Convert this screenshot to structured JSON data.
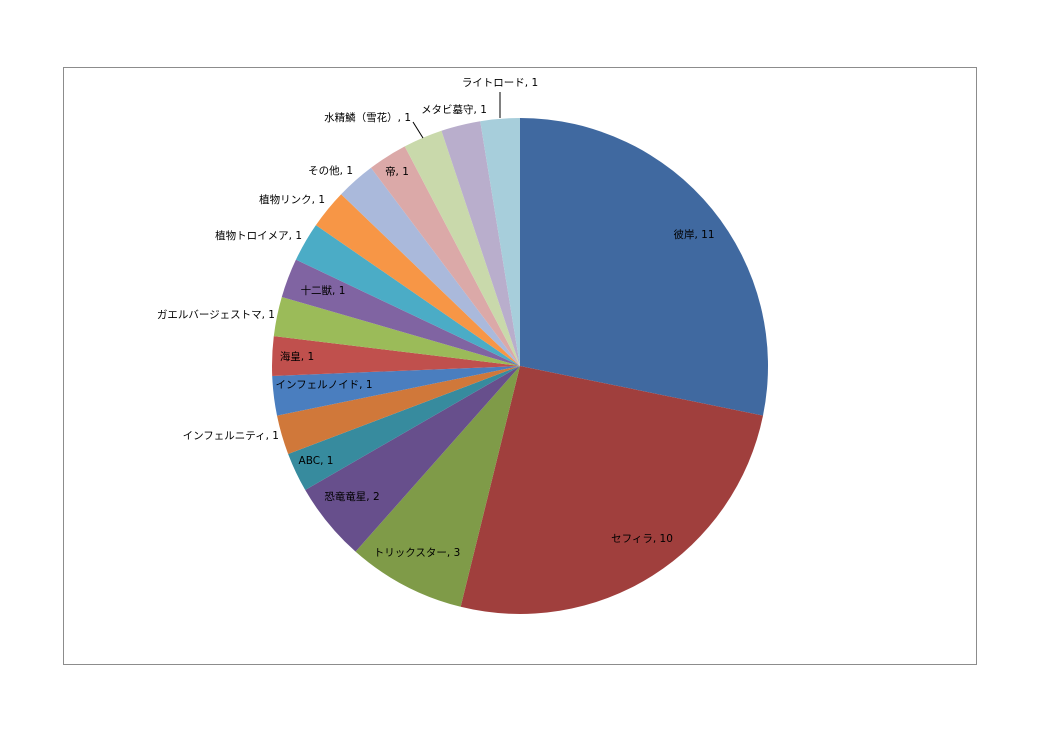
{
  "chart_data": {
    "type": "pie",
    "title": "",
    "label_separator": ", ",
    "slices": [
      {
        "label": "彼岸",
        "value": 11,
        "color": "#4069a0"
      },
      {
        "label": "セフィラ",
        "value": 10,
        "color": "#a03f3d"
      },
      {
        "label": "トリックスター",
        "value": 3,
        "color": "#7f9b48"
      },
      {
        "label": "恐竜竜星",
        "value": 2,
        "color": "#674f8c"
      },
      {
        "label": "ABC",
        "value": 1,
        "color": "#378b9e"
      },
      {
        "label": "インフェルニティ",
        "value": 1,
        "color": "#d0783a"
      },
      {
        "label": "インフェルノイド",
        "value": 1,
        "color": "#4a7ebf"
      },
      {
        "label": "海皇",
        "value": 1,
        "color": "#c0504d"
      },
      {
        "label": "ガエルバージェストマ",
        "value": 1,
        "color": "#9bbb59"
      },
      {
        "label": "十二獣",
        "value": 1,
        "color": "#8064a2"
      },
      {
        "label": "植物トロイメア",
        "value": 1,
        "color": "#4bacc6"
      },
      {
        "label": "植物リンク",
        "value": 1,
        "color": "#f79646"
      },
      {
        "label": "その他",
        "value": 1,
        "color": "#aab9db"
      },
      {
        "label": "帝",
        "value": 1,
        "color": "#dba9a8"
      },
      {
        "label": "水精鱗（雪花）",
        "value": 1,
        "color": "#c9d9ab"
      },
      {
        "label": "メタビ墓守",
        "value": 1,
        "color": "#b9aecc"
      },
      {
        "label": "ライトロード",
        "value": 1,
        "color": "#a7cedb"
      }
    ],
    "legend": "none",
    "data_labels": "category, value"
  }
}
